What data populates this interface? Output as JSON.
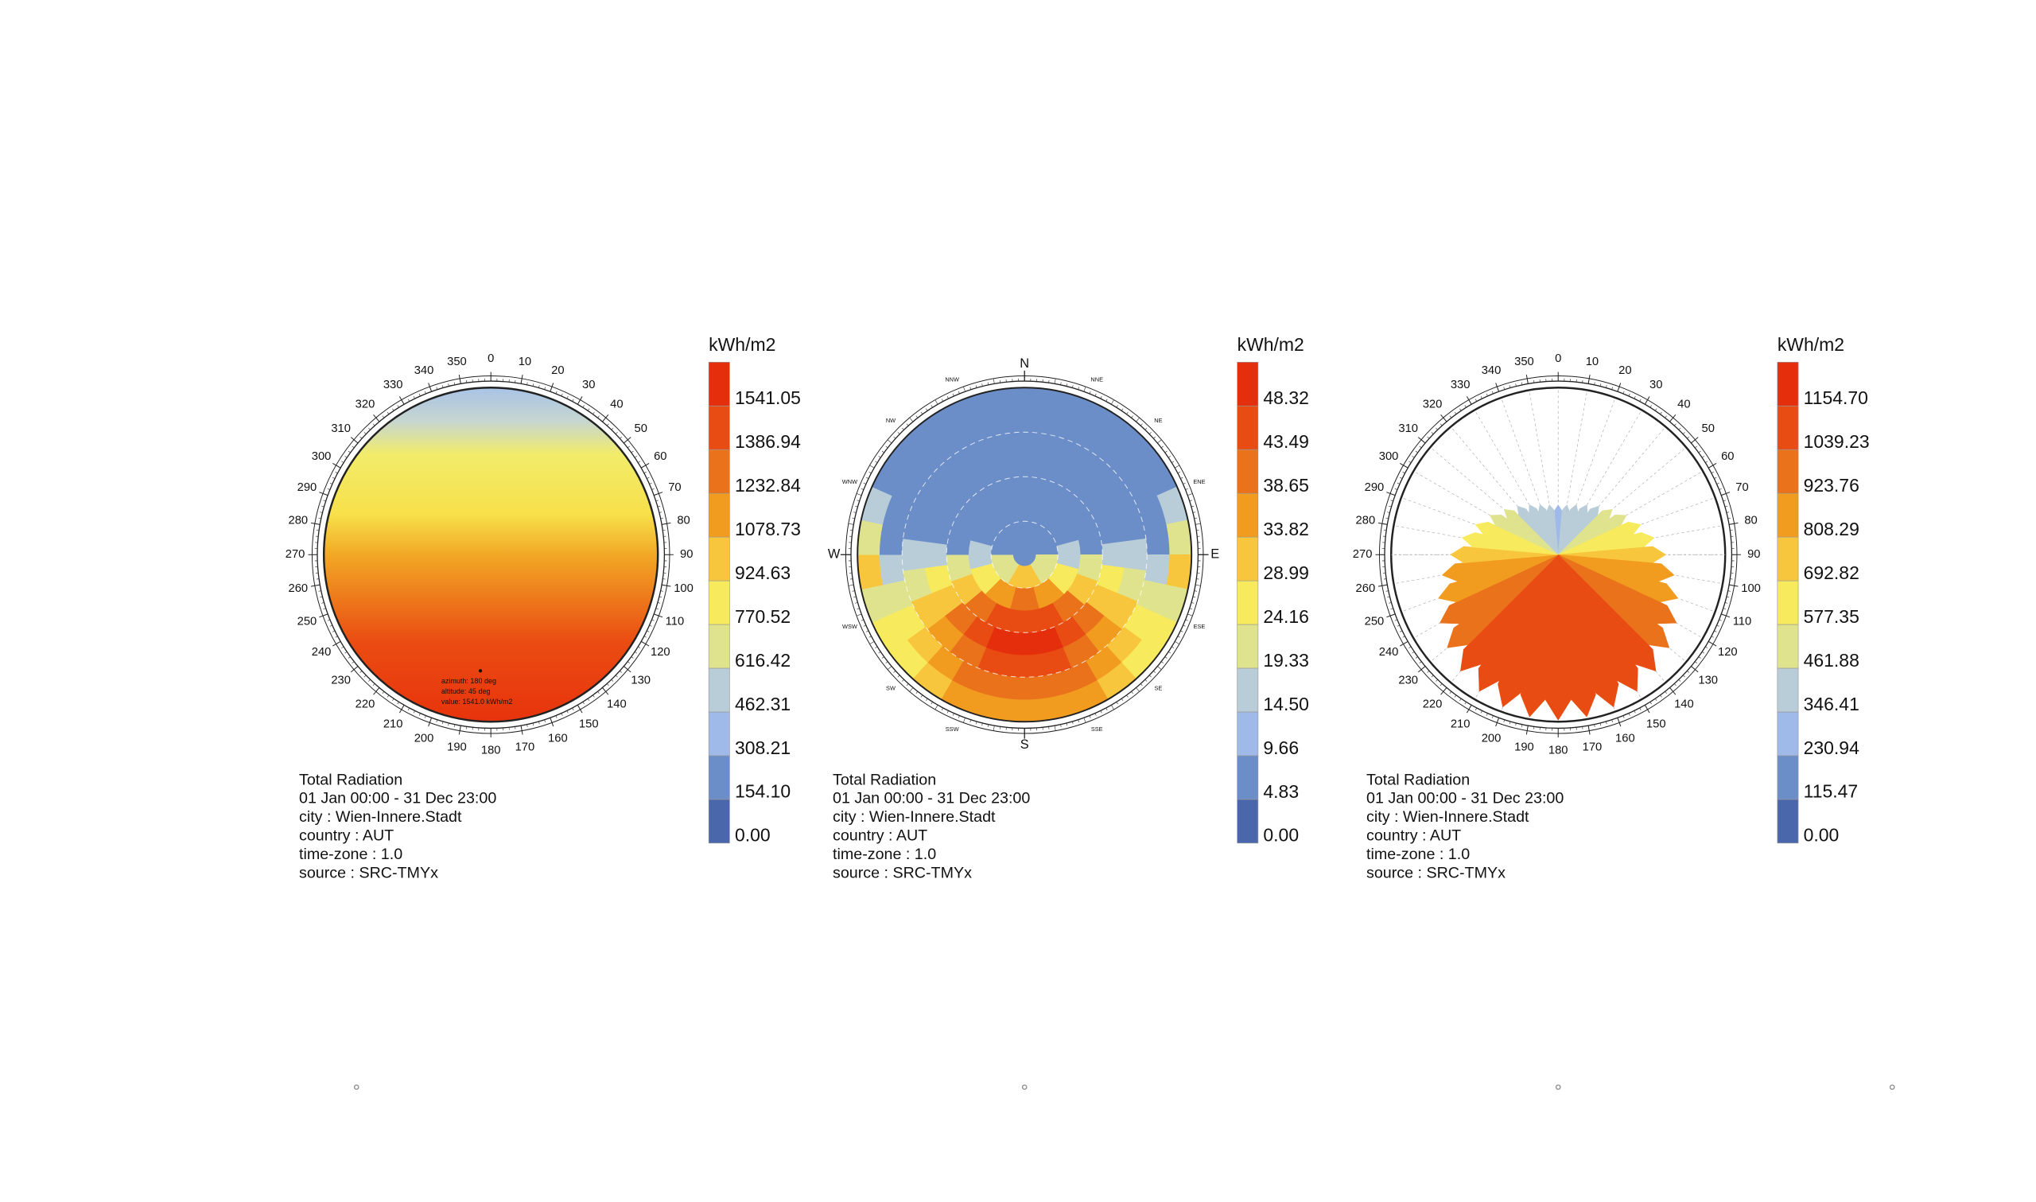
{
  "chart_data": [
    {
      "type": "sky-dome",
      "legend_title": "kWh/m2",
      "legend_ticks": [
        {
          "value": 0,
          "label": "0.00"
        },
        {
          "value": 154.1,
          "label": "154.10"
        },
        308.21,
        462.31,
        616.42,
        770.52,
        924.63,
        1078.73,
        1232.84,
        1386.94,
        1541.05
      ],
      "colors": [
        "#4a67ab",
        "#6b8dc8",
        "#9fb9e9",
        "#b9cdd8",
        "#dfe38e",
        "#f7ea5c",
        "#f8c63c",
        "#f19b1f",
        "#e9721b",
        "#e84c13",
        "#e52e0c"
      ],
      "angle_ticks": [
        0,
        10,
        20,
        30,
        40,
        50,
        60,
        70,
        80,
        90,
        100,
        110,
        120,
        130,
        140,
        150,
        160,
        170,
        180,
        190,
        200,
        210,
        220,
        230,
        240,
        250,
        260,
        270,
        280,
        290,
        300,
        310,
        320,
        330,
        340,
        350
      ],
      "annotation": [
        "azimuth: 180 deg",
        "altitude: 45 deg",
        "value: 1541.0 kWh/m2"
      ],
      "info": [
        "Total Radiation",
        "01 Jan 00:00 - 31 Dec 23:00",
        "city : Wien-Innere.Stadt",
        "country : AUT",
        "time-zone : 1.0",
        "source : SRC-TMYx"
      ]
    },
    {
      "type": "sky-matrix",
      "legend_title": "kWh/m2",
      "legend_ticks": [
        {
          "value": 0,
          "label": "0.00"
        },
        4.83,
        9.66,
        {
          "value": 14.5,
          "label": "14.50"
        },
        19.33,
        24.16,
        28.99,
        33.82,
        38.65,
        43.49,
        48.32
      ],
      "colors": [
        "#4a67ab",
        "#6b8dc8",
        "#9fb9e9",
        "#b9cdd8",
        "#dfe38e",
        "#f7ea5c",
        "#f8c63c",
        "#f19b1f",
        "#e9721b",
        "#e84c13",
        "#e52e0c"
      ],
      "compass": [
        "N",
        "E",
        "S",
        "W"
      ],
      "minor_compass": [
        "NNE",
        "NE",
        "ENE",
        "ESE",
        "SE",
        "SSE",
        "SSW",
        "SW",
        "WSW",
        "WNW",
        "NW",
        "NNW"
      ],
      "info": [
        "Total Radiation",
        "01 Jan 00:00 - 31 Dec 23:00",
        "city : Wien-Innere.Stadt",
        "country : AUT",
        "time-zone : 1.0",
        "source : SRC-TMYx"
      ]
    },
    {
      "type": "radiation-rose",
      "legend_title": "kWh/m2",
      "legend_ticks": [
        {
          "value": 0,
          "label": "0.00"
        },
        115.47,
        230.94,
        346.41,
        461.88,
        577.35,
        692.82,
        808.29,
        923.76,
        1039.23,
        {
          "value": 1154.7,
          "label": "1154.70"
        }
      ],
      "colors": [
        "#4a67ab",
        "#6b8dc8",
        "#9fb9e9",
        "#b9cdd8",
        "#dfe38e",
        "#f7ea5c",
        "#f8c63c",
        "#f19b1f",
        "#e9721b",
        "#e84c13",
        "#e52e0c"
      ],
      "angle_ticks": [
        0,
        10,
        20,
        30,
        40,
        50,
        60,
        70,
        80,
        90,
        100,
        110,
        120,
        130,
        140,
        150,
        160,
        170,
        180,
        190,
        200,
        210,
        220,
        230,
        240,
        250,
        260,
        270,
        280,
        290,
        300,
        310,
        320,
        330,
        340,
        350
      ],
      "petal_values": [
        345,
        351,
        369,
        399,
        439,
        488,
        545,
        608,
        675,
        745,
        815,
        882,
        945,
        1002,
        1051,
        1091,
        1121,
        1139,
        1145,
        1139,
        1121,
        1091,
        1051,
        1002,
        945,
        882,
        815,
        745,
        675,
        608,
        545,
        488,
        439,
        399,
        369,
        351
      ],
      "info": [
        "Total Radiation",
        "01 Jan 00:00 - 31 Dec 23:00",
        "city : Wien-Innere.Stadt",
        "country : AUT",
        "time-zone : 1.0",
        "source : SRC-TMYx"
      ]
    }
  ]
}
